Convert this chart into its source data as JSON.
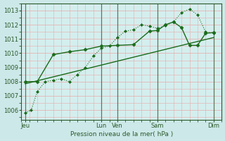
{
  "xlabel": "Pression niveau de la mer( hPa )",
  "bg_color": "#cce8e8",
  "plot_bg_color": "#d4eeee",
  "grid_color": "#e8aaaa",
  "line_color": "#1a6b1a",
  "ylim": [
    1005.3,
    1013.5
  ],
  "yticks": [
    1006,
    1007,
    1008,
    1009,
    1010,
    1011,
    1012,
    1013
  ],
  "xlim": [
    0,
    100
  ],
  "xtick_labels": [
    "Jeu",
    "Lun",
    "Ven",
    "Sam",
    "Dim"
  ],
  "xtick_positions": [
    2,
    40,
    48,
    68,
    96
  ],
  "vlines": [
    2,
    40,
    48,
    68,
    96
  ],
  "line_dotted": {
    "x": [
      2,
      5,
      8,
      12,
      16,
      20,
      24,
      28,
      32,
      36,
      40,
      44,
      48,
      52,
      56,
      60,
      64,
      68,
      72,
      76,
      80,
      84,
      88,
      92,
      96
    ],
    "y": [
      1005.8,
      1006.0,
      1007.3,
      1008.0,
      1008.1,
      1008.2,
      1008.0,
      1008.5,
      1009.0,
      1009.8,
      1010.35,
      1010.5,
      1011.1,
      1011.55,
      1011.65,
      1012.0,
      1011.9,
      1011.75,
      1011.95,
      1012.2,
      1012.85,
      1013.1,
      1012.7,
      1011.5,
      1011.4
    ],
    "marker": "D",
    "markersize": 2.0,
    "linewidth": 0.8,
    "linestyle": ":"
  },
  "line_solid": {
    "x": [
      2,
      8,
      16,
      24,
      32,
      40,
      48,
      56,
      64,
      68,
      72,
      76,
      80,
      84,
      88,
      92,
      96
    ],
    "y": [
      1008.0,
      1008.0,
      1009.9,
      1010.1,
      1010.25,
      1010.5,
      1010.55,
      1010.6,
      1011.55,
      1011.6,
      1012.0,
      1012.2,
      1011.8,
      1010.55,
      1010.55,
      1011.4,
      1011.45
    ],
    "marker": "D",
    "markersize": 2.5,
    "linewidth": 1.0,
    "linestyle": "-"
  },
  "line_trend": {
    "x": [
      2,
      96
    ],
    "y": [
      1007.85,
      1011.1
    ],
    "linewidth": 1.0,
    "linestyle": "-"
  }
}
